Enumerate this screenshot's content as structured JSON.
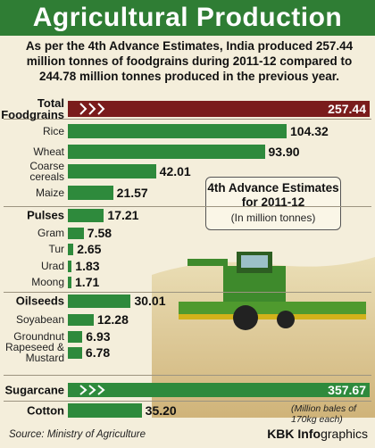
{
  "chart_data": {
    "type": "bar",
    "title": "Agricultural Production",
    "subtitle": "As per the 4th Advance Estimates, India produced 257.44 million tonnes of foodgrains during 2011-12 compared to 244.78 million tonnes produced in the previous year.",
    "categories": [
      "Total\nFoodgrains",
      "Rice",
      "Wheat",
      "Coarse\ncereals",
      "Maize",
      "Pulses",
      "Gram",
      "Tur",
      "Urad",
      "Moong",
      "Oilseeds",
      "Soyabean",
      "Groundnut",
      "Rapeseed &\nMustard",
      "Sugarcane",
      "Cotton"
    ],
    "values": [
      257.44,
      104.32,
      93.9,
      42.01,
      21.57,
      17.21,
      7.58,
      2.65,
      1.83,
      1.71,
      30.01,
      12.28,
      6.93,
      6.78,
      357.67,
      35.2
    ],
    "value_labels": [
      "257.44",
      "104.32",
      "93.90",
      "42.01",
      "21.57",
      "17.21",
      "7.58",
      "2.65",
      "1.83",
      "1.71",
      "30.01",
      "12.28",
      "6.93",
      "6.78",
      "357.67",
      "35.20"
    ],
    "headers": [
      0,
      5,
      10,
      14,
      15
    ],
    "broken": [
      0,
      14
    ],
    "color": "#2e8a3c",
    "annotation": "4th Advance Estimates\nfor 2011-12",
    "unit": "(In million tonnes)",
    "note": "(Million bales of\n170kg each)",
    "source": "Source: Ministry of Agriculture",
    "credit_bold": "KBK Info",
    "credit_rest": "graphics"
  }
}
